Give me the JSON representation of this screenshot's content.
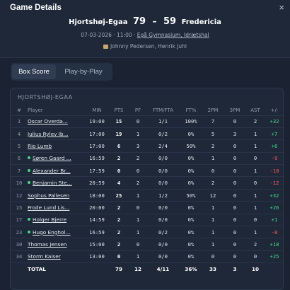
{
  "header": {
    "title": "Game Details",
    "close_icon": "×",
    "home_team": "Hjortshøj-Egaa",
    "home_score": "79",
    "separator": "–",
    "away_score": "59",
    "away_team": "Fredericia",
    "date_time": "07-03-2026 · 11:00 · ",
    "venue": "Egå Gymnasium, Idrætshal",
    "referees": "Johnny Pedersen, Henrik Juhl"
  },
  "tabs": [
    {
      "label": "Box Score",
      "active": true
    },
    {
      "label": "Play-by-Play",
      "active": false
    }
  ],
  "boxscore": {
    "team_label": "HJORTSHØJ-EGAA",
    "columns": [
      "#",
      "Player",
      "MIN",
      "PTS",
      "PF",
      "FTM/FTA",
      "FT%",
      "2PM",
      "3PM",
      "AST",
      "+/-"
    ],
    "rows": [
      {
        "num": "1",
        "player": "Oscar Overda...",
        "dot": false,
        "min": "19:00",
        "pts": "15",
        "pf": "0",
        "ft": "1/1",
        "ftp": "100%",
        "p2": "7",
        "p3": "0",
        "ast": "2",
        "pm": "+32"
      },
      {
        "num": "4",
        "player": "Julius Rylev Ib...",
        "dot": false,
        "min": "17:00",
        "pts": "19",
        "pf": "1",
        "ft": "0/2",
        "ftp": "0%",
        "p2": "5",
        "p3": "3",
        "ast": "1",
        "pm": "+7"
      },
      {
        "num": "5",
        "player": "Rio Lumb",
        "dot": false,
        "min": "17:00",
        "pts": "6",
        "pf": "3",
        "ft": "2/4",
        "ftp": "50%",
        "p2": "2",
        "p3": "0",
        "ast": "1",
        "pm": "+6"
      },
      {
        "num": "6",
        "player": "Søren Gaard ...",
        "dot": true,
        "min": "16:59",
        "pts": "2",
        "pf": "2",
        "ft": "0/0",
        "ftp": "0%",
        "p2": "1",
        "p3": "0",
        "ast": "0",
        "pm": "-9"
      },
      {
        "num": "7",
        "player": "Alexander Br...",
        "dot": true,
        "min": "17:59",
        "pts": "0",
        "pf": "0",
        "ft": "0/0",
        "ftp": "0%",
        "p2": "0",
        "p3": "0",
        "ast": "1",
        "pm": "-10"
      },
      {
        "num": "10",
        "player": "Benjamin Ste...",
        "dot": true,
        "min": "20:59",
        "pts": "4",
        "pf": "2",
        "ft": "0/0",
        "ftp": "0%",
        "p2": "2",
        "p3": "0",
        "ast": "0",
        "pm": "-12"
      },
      {
        "num": "12",
        "player": "Sophus Pallesen",
        "dot": false,
        "min": "18:00",
        "pts": "25",
        "pf": "1",
        "ft": "1/2",
        "ftp": "50%",
        "p2": "12",
        "p3": "0",
        "ast": "1",
        "pm": "+32"
      },
      {
        "num": "15",
        "player": "Frode Lund Lis...",
        "dot": false,
        "min": "20:00",
        "pts": "2",
        "pf": "0",
        "ft": "0/0",
        "ftp": "0%",
        "p2": "1",
        "p3": "0",
        "ast": "1",
        "pm": "+26"
      },
      {
        "num": "17",
        "player": "Holger Bjerre",
        "dot": true,
        "min": "14:59",
        "pts": "2",
        "pf": "1",
        "ft": "0/0",
        "ftp": "0%",
        "p2": "1",
        "p3": "0",
        "ast": "0",
        "pm": "+1"
      },
      {
        "num": "23",
        "player": "Hugo Enghol...",
        "dot": true,
        "min": "16:59",
        "pts": "2",
        "pf": "1",
        "ft": "0/2",
        "ftp": "0%",
        "p2": "1",
        "p3": "0",
        "ast": "1",
        "pm": "-8"
      },
      {
        "num": "30",
        "player": "Thomas Jensen",
        "dot": false,
        "min": "15:00",
        "pts": "2",
        "pf": "0",
        "ft": "0/0",
        "ftp": "0%",
        "p2": "1",
        "p3": "0",
        "ast": "2",
        "pm": "+18"
      },
      {
        "num": "34",
        "player": "Storm Kaiser",
        "dot": false,
        "min": "13:00",
        "pts": "0",
        "pf": "1",
        "ft": "0/0",
        "ftp": "0%",
        "p2": "0",
        "p3": "0",
        "ast": "0",
        "pm": "+25"
      }
    ],
    "total": {
      "label": "TOTAL",
      "pts": "79",
      "pf": "12",
      "ft": "4/11",
      "ftp": "36%",
      "p2": "33",
      "p3": "3",
      "ast": "10"
    }
  },
  "colors": {
    "positive": "#3ddc84",
    "negative": "#ff5a5a",
    "background": "#1b2332"
  }
}
